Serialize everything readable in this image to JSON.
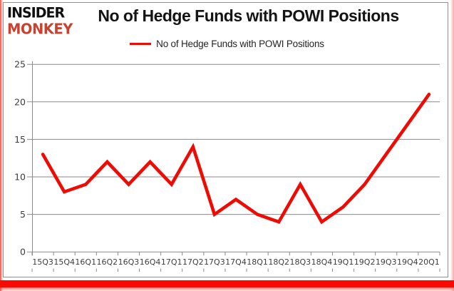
{
  "logo": {
    "line1": "INSIDER",
    "line2": "MONKEY"
  },
  "title": "No of Hedge Funds with POWI Positions",
  "legend": {
    "label": "No of Hedge Funds with POWI Positions"
  },
  "chart_data": {
    "type": "line",
    "title": "No of Hedge Funds with POWI Positions",
    "series_name": "No of Hedge Funds with POWI Positions",
    "categories": [
      "15Q3",
      "15Q4",
      "16Q1",
      "16Q2",
      "16Q3",
      "16Q4",
      "17Q1",
      "17Q2",
      "17Q3",
      "17Q4",
      "18Q1",
      "18Q2",
      "18Q3",
      "18Q4",
      "19Q1",
      "19Q2",
      "19Q3",
      "19Q4",
      "20Q1"
    ],
    "values": [
      13,
      8,
      9,
      12,
      9,
      12,
      9,
      14,
      5,
      7,
      5,
      4,
      9,
      4,
      6,
      9,
      13,
      17,
      21
    ],
    "ylim": [
      0,
      25
    ],
    "yticks": [
      0,
      5,
      10,
      15,
      20,
      25
    ],
    "grid": true,
    "legend_position": "top"
  },
  "colors": {
    "series_line": "#ee0b04",
    "bottom_bar": "#f70a01",
    "grid": "#8a8a8a",
    "axis_text": "#3d3d3d",
    "title_text": "#141414",
    "legend_text": "#242424",
    "logo_insider": "#101010",
    "logo_monkey": "#c7432f"
  }
}
